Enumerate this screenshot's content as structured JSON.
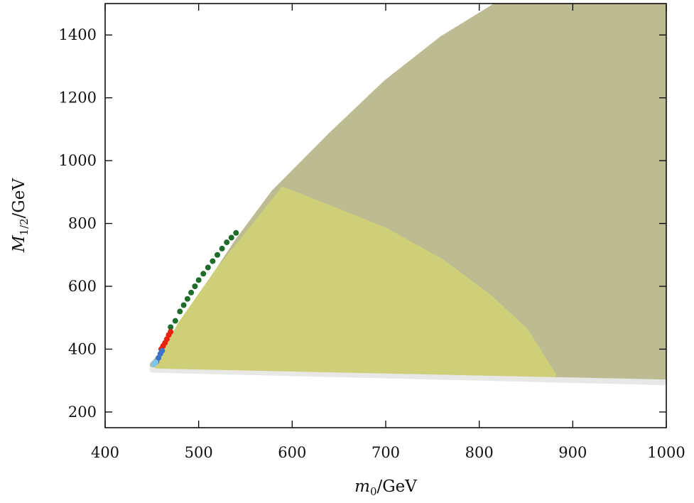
{
  "chart_data": {
    "type": "scatter",
    "title": "",
    "xlabel_symbol": "m",
    "xlabel_sub": "0",
    "xlabel_unit": "/GeV",
    "ylabel_symbol": "M",
    "ylabel_sub": "1/2",
    "ylabel_unit": "/GeV",
    "xlim": [
      400,
      1000
    ],
    "ylim": [
      150,
      1500
    ],
    "xticks": [
      400,
      500,
      600,
      700,
      800,
      900,
      1000
    ],
    "yticks": [
      200,
      400,
      600,
      800,
      1000,
      1200,
      1400
    ],
    "grid": false,
    "legend": "none",
    "regions": [
      {
        "color": "#e8e8e6",
        "points": [
          [
            450,
            332
          ],
          [
            1000,
            292
          ],
          [
            1000,
            318
          ],
          [
            450,
            356
          ]
        ]
      },
      {
        "color": "#bcbb92",
        "points": [
          [
            450,
            350
          ],
          [
            470,
            420
          ],
          [
            500,
            560
          ],
          [
            540,
            740
          ],
          [
            580,
            900
          ],
          [
            640,
            1080
          ],
          [
            700,
            1250
          ],
          [
            760,
            1390
          ],
          [
            820,
            1500
          ],
          [
            1000,
            1500
          ],
          [
            1000,
            310
          ],
          [
            460,
            345
          ]
        ]
      },
      {
        "color": "#cfcf79",
        "points": [
          [
            455,
            345
          ],
          [
            480,
            480
          ],
          [
            520,
            650
          ],
          [
            550,
            760
          ],
          [
            590,
            910
          ],
          [
            650,
            840
          ],
          [
            700,
            780
          ],
          [
            760,
            680
          ],
          [
            810,
            570
          ],
          [
            850,
            460
          ],
          [
            880,
            318
          ],
          [
            455,
            345
          ]
        ]
      }
    ],
    "series": [
      {
        "color": "#1e6b2a",
        "points": [
          [
            470,
            470
          ],
          [
            475,
            490
          ],
          [
            480,
            520
          ],
          [
            484,
            540
          ],
          [
            488,
            560
          ],
          [
            492,
            580
          ],
          [
            496,
            600
          ],
          [
            500,
            620
          ],
          [
            505,
            640
          ],
          [
            510,
            660
          ],
          [
            515,
            680
          ],
          [
            520,
            700
          ],
          [
            525,
            720
          ],
          [
            530,
            740
          ],
          [
            535,
            755
          ],
          [
            540,
            770
          ]
        ]
      },
      {
        "color": "#e8220e",
        "points": [
          [
            460,
            400
          ],
          [
            462,
            410
          ],
          [
            464,
            420
          ],
          [
            466,
            432
          ],
          [
            468,
            445
          ],
          [
            470,
            455
          ]
        ]
      },
      {
        "color": "#3a74c8",
        "points": [
          [
            455,
            360
          ],
          [
            457,
            372
          ],
          [
            459,
            385
          ],
          [
            461,
            395
          ]
        ]
      },
      {
        "color": "#7ec4ea",
        "points": [
          [
            452,
            352
          ],
          [
            454,
            358
          ]
        ]
      }
    ]
  }
}
